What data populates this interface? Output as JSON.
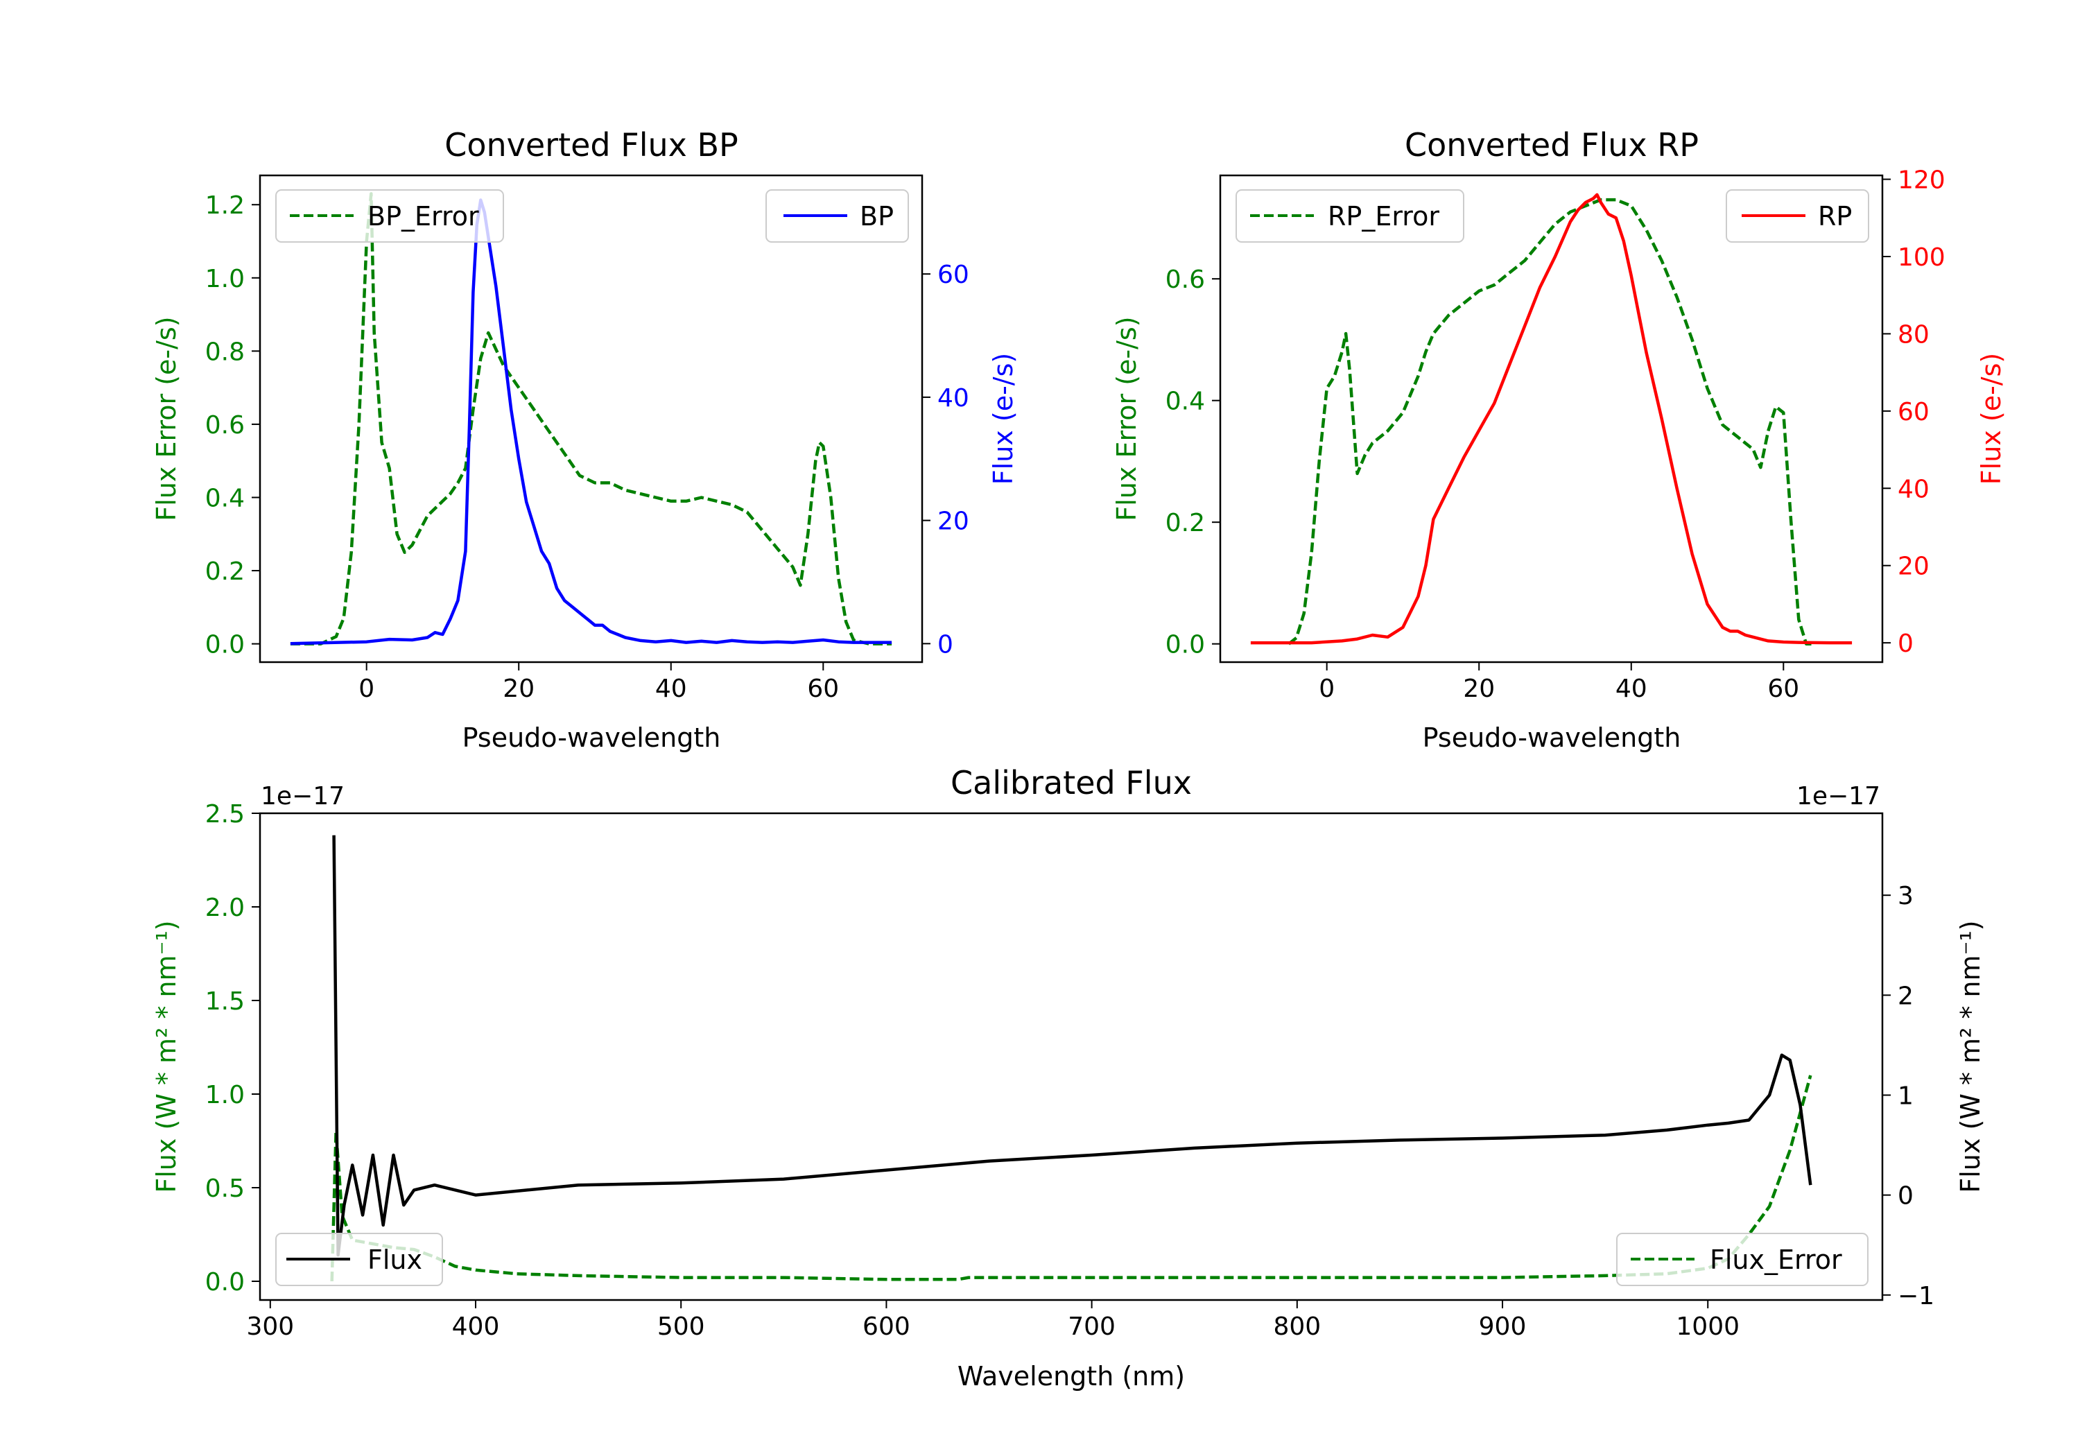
{
  "colors": {
    "error": "#008000",
    "bp": "#0000ff",
    "rp": "#ff0000",
    "flux": "#000000"
  },
  "chart_data": [
    {
      "type": "line",
      "title": "Converted Flux BP",
      "xlabel": "Pseudo-wavelength",
      "ylabel_left": "Flux Error (e-/s)",
      "ylabel_right": "Flux (e-/s)",
      "xlim": [
        -14,
        73
      ],
      "ylim_left": [
        -0.05,
        1.28
      ],
      "ylim_right": [
        -3,
        76
      ],
      "xticks": [
        0,
        20,
        40,
        60
      ],
      "yticks_left": [
        0.0,
        0.2,
        0.4,
        0.6,
        0.8,
        1.0,
        1.2
      ],
      "yticks_left_labels": [
        "0.0",
        "0.2",
        "0.4",
        "0.6",
        "0.8",
        "1.0",
        "1.2"
      ],
      "yticks_right": [
        0,
        20,
        40,
        60
      ],
      "legend_left": "BP_Error",
      "legend_right": "BP",
      "series": [
        {
          "name": "BP_Error",
          "axis": "left",
          "style": "dashed",
          "x": [
            -10,
            -6,
            -4,
            -3,
            -2,
            -1,
            0,
            0.6,
            1,
            2,
            3,
            4,
            5,
            6,
            7,
            8,
            9,
            10,
            11,
            12,
            13,
            14,
            15,
            16,
            18,
            20,
            22,
            24,
            26,
            28,
            30,
            32,
            34,
            36,
            38,
            40,
            42,
            44,
            46,
            48,
            50,
            52,
            54,
            56,
            57,
            58,
            59,
            59.5,
            60,
            61,
            62,
            63,
            64,
            66,
            69
          ],
          "y": [
            0.0,
            0.0,
            0.02,
            0.07,
            0.25,
            0.6,
            1.1,
            1.23,
            0.85,
            0.55,
            0.48,
            0.3,
            0.25,
            0.27,
            0.31,
            0.35,
            0.37,
            0.39,
            0.41,
            0.44,
            0.48,
            0.64,
            0.78,
            0.85,
            0.76,
            0.7,
            0.64,
            0.58,
            0.52,
            0.46,
            0.44,
            0.44,
            0.42,
            0.41,
            0.4,
            0.39,
            0.39,
            0.4,
            0.39,
            0.38,
            0.36,
            0.31,
            0.26,
            0.21,
            0.16,
            0.3,
            0.5,
            0.55,
            0.54,
            0.4,
            0.18,
            0.06,
            0.01,
            0.0,
            0.0
          ]
        },
        {
          "name": "BP",
          "axis": "right",
          "style": "solid",
          "x": [
            -10,
            0,
            3,
            6,
            8,
            9,
            10,
            11,
            12,
            13,
            13.5,
            14,
            14.5,
            15,
            15.5,
            16,
            17,
            18,
            19,
            20,
            21,
            22,
            23,
            24,
            25,
            26,
            27,
            28,
            29,
            30,
            31,
            32,
            33,
            34,
            36,
            38,
            40,
            42,
            44,
            46,
            48,
            50,
            52,
            54,
            56,
            58,
            60,
            62,
            64,
            66,
            69
          ],
          "y": [
            0,
            0.3,
            0.7,
            0.6,
            1.0,
            1.8,
            1.5,
            4,
            7,
            15,
            35,
            57,
            68,
            72,
            70,
            66,
            58,
            48,
            38,
            30,
            23,
            19,
            15,
            13,
            9,
            7,
            6,
            5,
            4,
            3,
            3,
            2,
            1.5,
            1,
            0.5,
            0.3,
            0.5,
            0.2,
            0.4,
            0.2,
            0.5,
            0.3,
            0.2,
            0.3,
            0.2,
            0.4,
            0.6,
            0.3,
            0.2,
            0.2,
            0.2
          ]
        }
      ]
    },
    {
      "type": "line",
      "title": "Converted Flux RP",
      "xlabel": "Pseudo-wavelength",
      "ylabel_left": "Flux Error (e-/s)",
      "ylabel_right": "Flux (e-/s)",
      "xlim": [
        -14,
        73
      ],
      "ylim_left": [
        -0.03,
        0.77
      ],
      "ylim_right": [
        -5,
        121
      ],
      "xticks": [
        0,
        20,
        40,
        60
      ],
      "yticks_left": [
        0.0,
        0.2,
        0.4,
        0.6
      ],
      "yticks_left_labels": [
        "0.0",
        "0.2",
        "0.4",
        "0.6"
      ],
      "yticks_right": [
        0,
        20,
        40,
        60,
        80,
        100,
        120
      ],
      "legend_left": "RP_Error",
      "legend_right": "RP",
      "series": [
        {
          "name": "RP_Error",
          "axis": "left",
          "style": "dashed",
          "x": [
            -5,
            -4,
            -3,
            -2,
            -1,
            0,
            1,
            2,
            2.5,
            3,
            4,
            5,
            6,
            8,
            10,
            12,
            13,
            14,
            16,
            18,
            20,
            22,
            24,
            26,
            28,
            30,
            32,
            34,
            36,
            38,
            40,
            42,
            44,
            46,
            48,
            50,
            52,
            54,
            55,
            56,
            57,
            58,
            59,
            60,
            61,
            62,
            63,
            64
          ],
          "y": [
            0.0,
            0.01,
            0.05,
            0.15,
            0.3,
            0.42,
            0.44,
            0.48,
            0.51,
            0.45,
            0.28,
            0.31,
            0.33,
            0.35,
            0.38,
            0.44,
            0.48,
            0.51,
            0.54,
            0.56,
            0.58,
            0.59,
            0.61,
            0.63,
            0.66,
            0.69,
            0.71,
            0.72,
            0.73,
            0.73,
            0.72,
            0.68,
            0.63,
            0.57,
            0.5,
            0.42,
            0.36,
            0.34,
            0.33,
            0.32,
            0.29,
            0.35,
            0.39,
            0.38,
            0.2,
            0.04,
            0.0,
            0.0
          ]
        },
        {
          "name": "RP",
          "axis": "right",
          "style": "solid",
          "x": [
            -10,
            -2,
            2,
            4,
            6,
            8,
            10,
            11,
            12,
            13,
            14,
            16,
            18,
            20,
            22,
            24,
            26,
            28,
            30,
            32,
            33,
            34,
            35,
            35.5,
            36,
            37,
            38,
            39,
            40,
            41,
            42,
            44,
            46,
            48,
            50,
            52,
            53,
            54,
            55,
            56,
            58,
            60,
            62,
            66,
            69
          ],
          "y": [
            0,
            0,
            0.5,
            1,
            2,
            1.5,
            4,
            8,
            12,
            20,
            32,
            40,
            48,
            55,
            62,
            72,
            82,
            92,
            100,
            109,
            112,
            114,
            115,
            116,
            114,
            111,
            110,
            104,
            95,
            85,
            75,
            58,
            40,
            23,
            10,
            4,
            3,
            3,
            2,
            1.5,
            0.5,
            0.2,
            0.1,
            0,
            0
          ]
        }
      ]
    },
    {
      "type": "line",
      "title": "Calibrated Flux",
      "xlabel": "Wavelength (nm)",
      "ylabel_left": "Flux (W * m² * nm⁻¹)",
      "ylabel_right": "Flux (W * m² * nm⁻¹)",
      "offset_left": "1e−17",
      "offset_right": "1e−17",
      "xlim": [
        295,
        1085
      ],
      "ylim_left": [
        -0.1,
        2.5
      ],
      "ylim_right": [
        -1.05,
        3.82
      ],
      "xticks": [
        300,
        400,
        500,
        600,
        700,
        800,
        900,
        1000
      ],
      "yticks_left": [
        0.0,
        0.5,
        1.0,
        1.5,
        2.0,
        2.5
      ],
      "yticks_left_labels": [
        "0.0",
        "0.5",
        "1.0",
        "1.5",
        "2.0",
        "2.5"
      ],
      "yticks_right": [
        -1,
        0,
        1,
        2,
        3
      ],
      "yticks_right_labels": [
        "−1",
        "0",
        "1",
        "2",
        "3"
      ],
      "legend_left": "Flux",
      "legend_right": "Flux_Error",
      "series": [
        {
          "name": "Flux_Error",
          "axis": "left",
          "style": "dashed",
          "x": [
            330,
            332,
            335,
            340,
            350,
            360,
            370,
            380,
            390,
            400,
            420,
            450,
            500,
            550,
            600,
            635,
            640,
            700,
            800,
            900,
            950,
            980,
            1000,
            1010,
            1020,
            1030,
            1040,
            1045,
            1050
          ],
          "y": [
            0.0,
            0.8,
            0.35,
            0.22,
            0.2,
            0.18,
            0.17,
            0.13,
            0.08,
            0.06,
            0.04,
            0.03,
            0.02,
            0.02,
            0.01,
            0.01,
            0.02,
            0.02,
            0.02,
            0.02,
            0.03,
            0.04,
            0.07,
            0.12,
            0.25,
            0.4,
            0.7,
            0.9,
            1.1
          ]
        },
        {
          "name": "Flux",
          "axis": "right",
          "style": "solid",
          "x": [
            331,
            333,
            336,
            340,
            345,
            350,
            355,
            360,
            365,
            370,
            380,
            400,
            450,
            500,
            550,
            600,
            650,
            700,
            750,
            800,
            850,
            900,
            950,
            980,
            1000,
            1010,
            1020,
            1030,
            1036,
            1040,
            1045,
            1050
          ],
          "y": [
            3.6,
            -0.6,
            -0.1,
            0.3,
            -0.2,
            0.4,
            -0.3,
            0.4,
            -0.1,
            0.05,
            0.1,
            0.0,
            0.1,
            0.12,
            0.16,
            0.25,
            0.34,
            0.4,
            0.47,
            0.52,
            0.55,
            0.57,
            0.6,
            0.65,
            0.7,
            0.72,
            0.75,
            1.0,
            1.4,
            1.35,
            0.9,
            0.1
          ]
        }
      ]
    }
  ]
}
